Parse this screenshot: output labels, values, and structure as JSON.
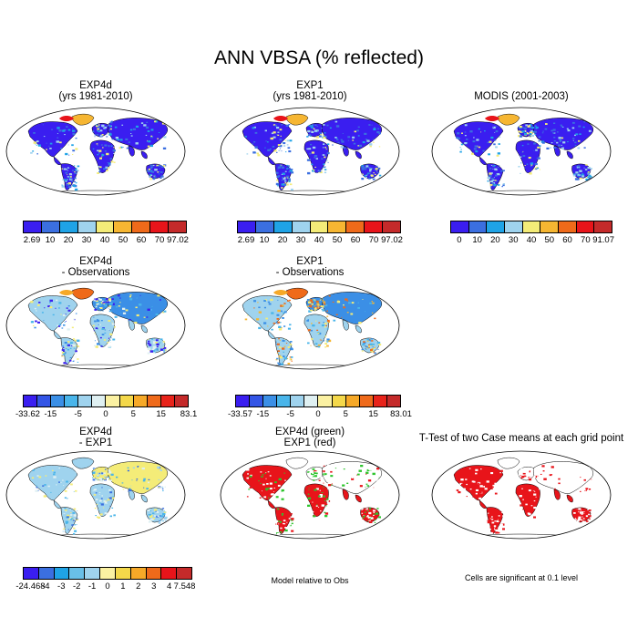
{
  "title": "ANN VBSA (% reflected)",
  "colors": {
    "scale": [
      "#3a1ef0",
      "#3b6fe0",
      "#1fa3e6",
      "#9fd3ee",
      "#f4ec78",
      "#f6b632",
      "#ef6a1a",
      "#e8141a",
      "#c42a2a"
    ],
    "ocean": "#ffffff",
    "outline": "#000000"
  },
  "panels": [
    {
      "id": "exp4d",
      "title_line1": "EXP4d",
      "title_line2": "(yrs 1981-2010)",
      "map_style": "albedo",
      "colorbar_labels": [
        "2.69",
        "10",
        "20",
        "30",
        "40",
        "50",
        "60",
        "70",
        "97.02"
      ]
    },
    {
      "id": "exp1",
      "title_line1": "EXP1",
      "title_line2": "(yrs 1981-2010)",
      "map_style": "albedo",
      "colorbar_labels": [
        "2.69",
        "10",
        "20",
        "30",
        "40",
        "50",
        "60",
        "70",
        "97.02"
      ]
    },
    {
      "id": "modis",
      "title_line1": "MODIS (2001-2003)",
      "title_line2": "",
      "map_style": "albedo",
      "colorbar_labels": [
        "0",
        "10",
        "20",
        "30",
        "40",
        "50",
        "60",
        "70",
        "91.07"
      ]
    },
    {
      "id": "exp4d-obs",
      "title_line1": "EXP4d",
      "title_line2": "- Observations",
      "map_style": "diff",
      "colorbar_labels": [
        "-33.62",
        "-15",
        "-5",
        "0",
        "5",
        "15",
        "83.1"
      ]
    },
    {
      "id": "exp1-obs",
      "title_line1": "EXP1",
      "title_line2": "- Observations",
      "map_style": "diff-warm",
      "colorbar_labels": [
        "-33.57",
        "-15",
        "-5",
        "0",
        "5",
        "15",
        "83.01"
      ]
    },
    {
      "id": "exp4d-exp1",
      "title_line1": "EXP4d",
      "title_line2": "- EXP1",
      "map_style": "diff-cool",
      "colorbar_labels": [
        "-24.468",
        "-4",
        "-3",
        "-2",
        "-1",
        "0",
        "1",
        "2",
        "3",
        "4",
        "7.548"
      ]
    },
    {
      "id": "relative",
      "title_line1": "EXP4d (green)",
      "title_line2": "EXP1 (red)",
      "map_style": "greenred",
      "note": "Model relative to Obs"
    },
    {
      "id": "ttest",
      "title_line1": "T-Test of two Case means at each grid point",
      "title_line2": "",
      "map_style": "red",
      "note": "Cells are significant at 0.1 level"
    }
  ]
}
